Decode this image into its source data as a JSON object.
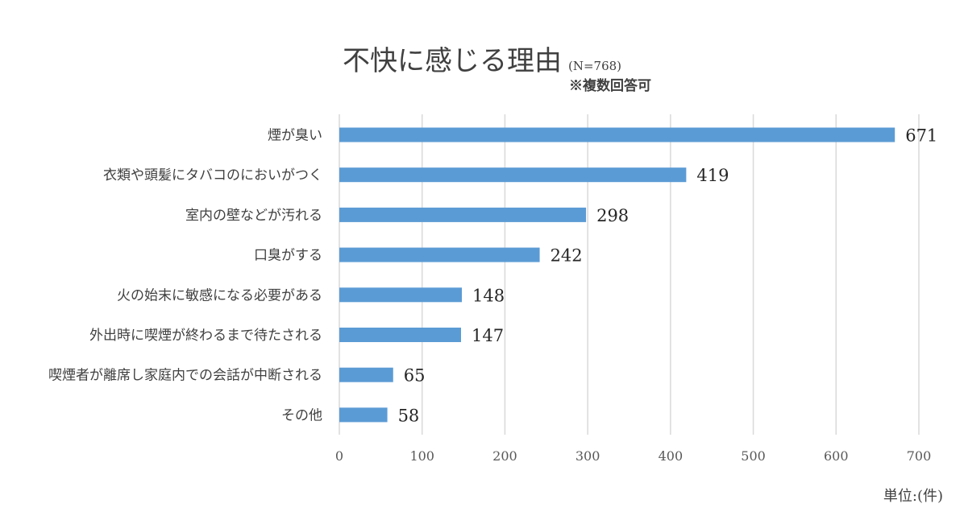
{
  "chart_data": {
    "type": "bar",
    "orientation": "horizontal",
    "title": "不快に感じる理由",
    "title_note": "(N=768)",
    "subtitle": "※複数回答可",
    "unit_label": "単位:(件)",
    "categories": [
      "煙が臭い",
      "衣類や頭髪にタバコのにおいがつく",
      "室内の壁などが汚れる",
      "口臭がする",
      "火の始末に敏感になる必要がある",
      "外出時に喫煙が終わるまで待たされる",
      "喫煙者が離席し家庭内での会話が中断される",
      "その他"
    ],
    "values": [
      671,
      419,
      298,
      242,
      148,
      147,
      65,
      58
    ],
    "xlim": [
      0,
      700
    ],
    "x_ticks": [
      0,
      100,
      200,
      300,
      400,
      500,
      600,
      700
    ],
    "grid": "vertical",
    "legend": "none",
    "bar_color": "#5b9bd5"
  }
}
